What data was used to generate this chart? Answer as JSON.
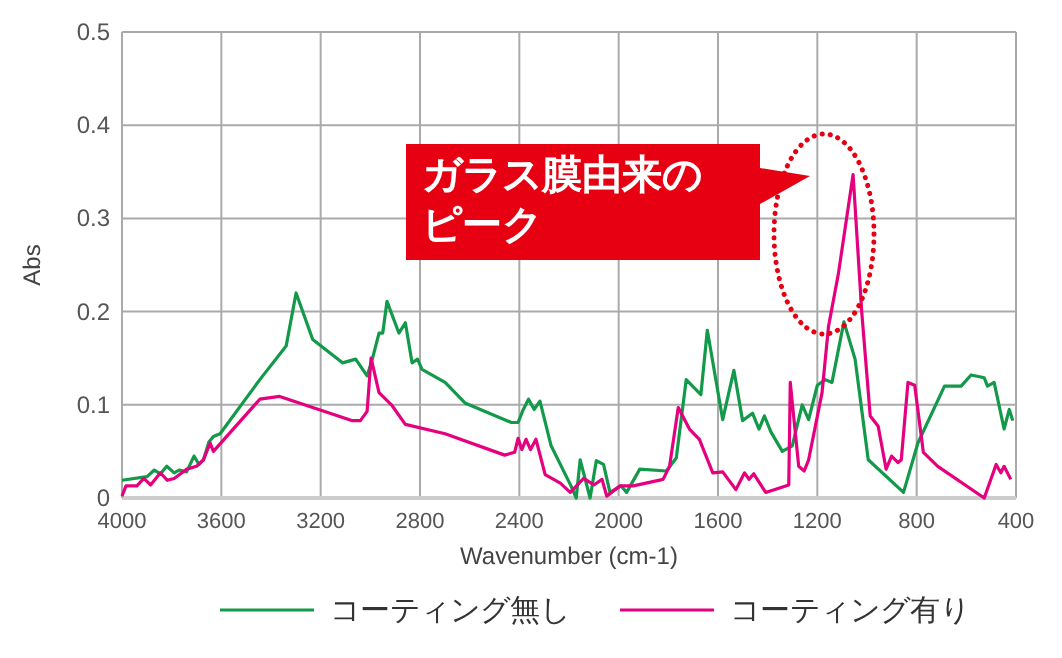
{
  "chart_data": {
    "type": "line",
    "xlabel": "Wavenumber (cm-1)",
    "ylabel": "Abs",
    "xlim": [
      4000,
      400
    ],
    "xticks": [
      4000,
      3600,
      3200,
      2800,
      2400,
      2000,
      1600,
      1200,
      800,
      400
    ],
    "ylim": [
      0,
      0.5
    ],
    "yticks": [
      0,
      0.1,
      0.2,
      0.3,
      0.4,
      0.5
    ],
    "grid": true,
    "legend": "bottom",
    "marker": "none",
    "line_style": "solid",
    "annotations": [
      "ガラス膜由来のピーク"
    ],
    "series": [
      {
        "name": "コーティング無し",
        "color": "#12994a",
        "x": [
          4000,
          3899,
          3870,
          3845,
          3820,
          3790,
          3770,
          3740,
          3710,
          3690,
          3672,
          3650,
          3632,
          3605,
          3445,
          3339,
          3299,
          3232,
          3112,
          3059,
          3013,
          2992,
          2965,
          2950,
          2933,
          2885,
          2859,
          2832,
          2810,
          2792,
          2699,
          2619,
          2432,
          2405,
          2384,
          2363,
          2340,
          2317,
          2272,
          2192,
          2171,
          2155,
          2115,
          2090,
          2061,
          2035,
          1990,
          1968,
          1915,
          1808,
          1768,
          1728,
          1669,
          1643,
          1581,
          1536,
          1501,
          1461,
          1435,
          1413,
          1387,
          1341,
          1301,
          1261,
          1235,
          1200,
          1168,
          1141,
          1093,
          1048,
          995,
          853,
          795,
          688,
          621,
          581,
          528,
          515,
          488,
          448,
          427,
          413
        ],
        "values": [
          0.019,
          0.023,
          0.03,
          0.026,
          0.034,
          0.027,
          0.03,
          0.028,
          0.045,
          0.036,
          0.041,
          0.06,
          0.066,
          0.069,
          0.127,
          0.163,
          0.22,
          0.17,
          0.145,
          0.149,
          0.131,
          0.149,
          0.177,
          0.177,
          0.211,
          0.177,
          0.188,
          0.145,
          0.149,
          0.138,
          0.124,
          0.102,
          0.081,
          0.081,
          0.095,
          0.106,
          0.095,
          0.104,
          0.056,
          0.013,
          0,
          0.041,
          0,
          0.04,
          0.036,
          0.006,
          0.013,
          0.006,
          0.031,
          0.029,
          0.043,
          0.127,
          0.111,
          0.18,
          0.084,
          0.137,
          0.083,
          0.091,
          0.074,
          0.088,
          0.071,
          0.05,
          0.056,
          0.1,
          0.084,
          0.121,
          0.127,
          0.124,
          0.189,
          0.149,
          0.041,
          0.006,
          0.059,
          0.12,
          0.12,
          0.132,
          0.129,
          0.12,
          0.124,
          0.074,
          0.095,
          0.083
        ]
      },
      {
        "name": "コーティング有り",
        "color": "#e5007f",
        "x": [
          4000,
          3984,
          3940,
          3912,
          3885,
          3845,
          3818,
          3790,
          3739,
          3700,
          3672,
          3645,
          3632,
          3445,
          3365,
          3072,
          3040,
          3013,
          2997,
          2965,
          2912,
          2859,
          2699,
          2459,
          2419,
          2405,
          2390,
          2373,
          2355,
          2333,
          2296,
          2235,
          2195,
          2141,
          2100,
          2067,
          2048,
          1995,
          1941,
          1821,
          1795,
          1760,
          1715,
          1675,
          1621,
          1581,
          1528,
          1493,
          1475,
          1456,
          1408,
          1315,
          1309,
          1275,
          1253,
          1235,
          1181,
          1155,
          1115,
          1056,
          1021,
          987,
          955,
          923,
          901,
          875,
          862,
          835,
          808,
          773,
          715,
          528,
          480,
          461,
          448,
          421
        ],
        "values": [
          0.002,
          0.013,
          0.013,
          0.021,
          0.014,
          0.027,
          0.019,
          0.021,
          0.031,
          0.034,
          0.041,
          0.059,
          0.05,
          0.106,
          0.109,
          0.083,
          0.083,
          0.093,
          0.15,
          0.113,
          0.099,
          0.079,
          0.069,
          0.046,
          0.049,
          0.064,
          0.052,
          0.063,
          0.052,
          0.063,
          0.025,
          0.016,
          0.006,
          0.021,
          0.014,
          0.02,
          0.002,
          0.013,
          0.013,
          0.02,
          0.034,
          0.097,
          0.074,
          0.063,
          0.027,
          0.028,
          0.009,
          0.027,
          0.02,
          0.026,
          0.006,
          0.014,
          0.124,
          0.034,
          0.029,
          0.041,
          0.113,
          0.184,
          0.241,
          0.347,
          0.199,
          0.088,
          0.077,
          0.031,
          0.045,
          0.038,
          0.041,
          0.124,
          0.121,
          0.049,
          0.034,
          0,
          0.036,
          0.027,
          0.034,
          0.02
        ]
      }
    ]
  }
}
